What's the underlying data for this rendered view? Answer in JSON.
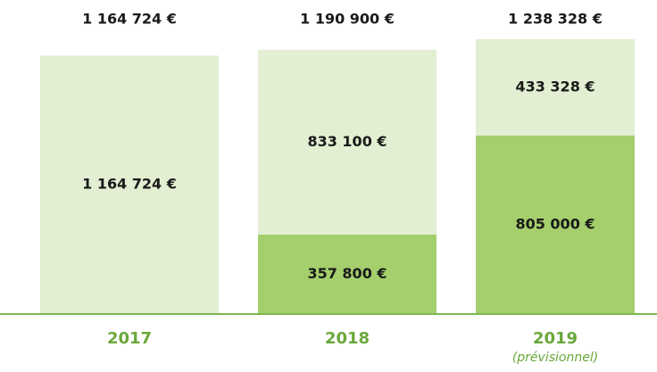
{
  "chart_data": {
    "type": "stacked-bar",
    "categories": [
      "2017",
      "2018",
      "2019"
    ],
    "category_notes": [
      null,
      null,
      "(prévisionnel)"
    ],
    "series": [
      {
        "color": "#a4cf6c",
        "values": [
          null,
          357800,
          805000
        ],
        "value_labels": [
          null,
          "357 800 €",
          "805 000 €"
        ]
      },
      {
        "color": "#e2efd2",
        "values": [
          1164724,
          833100,
          433328
        ],
        "value_labels": [
          "1 164 724 €",
          "833 100 €",
          "433 328 €"
        ]
      }
    ],
    "totals": [
      1164724,
      1190900,
      1238328
    ],
    "total_labels": [
      "1 164 724 €",
      "1 190 900 €",
      "1 238 328 €"
    ],
    "category_color": "#6aa83c",
    "baseline_color": "#7cb84c"
  }
}
